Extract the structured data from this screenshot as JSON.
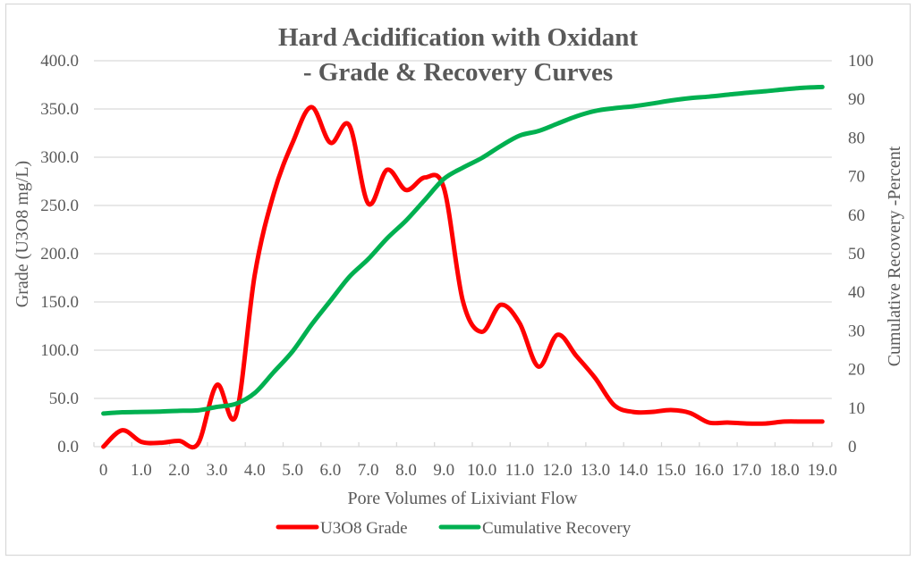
{
  "chart_data": {
    "type": "line",
    "title_lines": [
      "Hard Acidification with Oxidant",
      "- Grade & Recovery Curves"
    ],
    "xlabel": "Pore Volumes of Lixiviant Flow",
    "ylabel": "Grade (U3O8 mg/L)",
    "y2label": "Cumulative Recovery -Percent",
    "x": [
      0,
      0.5,
      1.0,
      1.5,
      2.0,
      2.5,
      3.0,
      3.5,
      4.0,
      4.5,
      5.0,
      5.5,
      6.0,
      6.5,
      7.0,
      7.5,
      8.0,
      8.5,
      9.0,
      9.5,
      10.0,
      10.5,
      11.0,
      11.5,
      12.0,
      12.5,
      13.0,
      13.5,
      14.0,
      14.5,
      15.0,
      15.5,
      16.0,
      16.5,
      17.0,
      17.5,
      18.0,
      18.5,
      19.0
    ],
    "x_tick_labels": [
      "0",
      "1.0",
      "2.0",
      "3.0",
      "4.0",
      "5.0",
      "6.0",
      "7.0",
      "8.0",
      "9.0",
      "10.0",
      "11.0",
      "12.0",
      "13.0",
      "14.0",
      "15.0",
      "16.0",
      "17.0",
      "18.0",
      "19.0"
    ],
    "y_ticks": [
      0,
      50,
      100,
      150,
      200,
      250,
      300,
      350,
      400
    ],
    "y_tick_labels": [
      "0.0",
      "50.0",
      "100.0",
      "150.0",
      "200.0",
      "250.0",
      "300.0",
      "350.0",
      "400.0"
    ],
    "y2_ticks": [
      0,
      10,
      20,
      30,
      40,
      50,
      60,
      70,
      80,
      90,
      100
    ],
    "y2_tick_labels": [
      "0",
      "10",
      "20",
      "30",
      "40",
      "50",
      "60",
      "70",
      "80",
      "90",
      "100"
    ],
    "ylim": [
      0,
      400
    ],
    "y2lim": [
      0,
      100
    ],
    "grid": true,
    "smoothed": true,
    "legend_position": "bottom",
    "series": [
      {
        "name": "U3O8 Grade",
        "axis": "left",
        "color": "#ff0000",
        "values": [
          0,
          17,
          5,
          4,
          6,
          3,
          64,
          32,
          178,
          262,
          315,
          352,
          315,
          333,
          252,
          287,
          266,
          279,
          268,
          151,
          119,
          147,
          128,
          83,
          116,
          94,
          71,
          43,
          36,
          36,
          38,
          35,
          25,
          25,
          24,
          24,
          26,
          26,
          26
        ]
      },
      {
        "name": "Cumulative Recovery",
        "axis": "right",
        "color": "#00b050",
        "values": [
          8.6,
          8.9,
          9.0,
          9.1,
          9.3,
          9.4,
          10.3,
          11.1,
          13.9,
          19.3,
          24.7,
          31.6,
          37.8,
          44.0,
          48.6,
          54.0,
          58.6,
          64.0,
          69.4,
          72.3,
          74.8,
          77.9,
          80.6,
          81.8,
          83.7,
          85.6,
          87.0,
          87.7,
          88.2,
          88.9,
          89.7,
          90.3,
          90.7,
          91.2,
          91.7,
          92.1,
          92.6,
          93.0,
          93.2
        ]
      }
    ]
  }
}
